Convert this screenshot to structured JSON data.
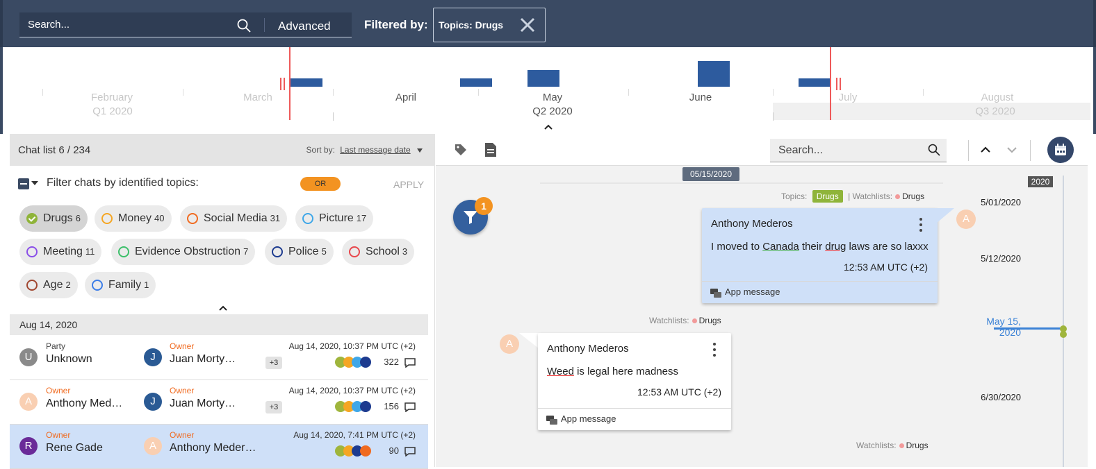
{
  "topbar": {
    "search_placeholder": "Search...",
    "advanced_label": "Advanced",
    "filtered_by_label": "Filtered by:",
    "filter_chip_label": "Topics:  Drugs"
  },
  "timeline": {
    "months": [
      "February",
      "March",
      "April",
      "May",
      "June",
      "July",
      "August"
    ],
    "quarters": [
      "Q1  2020",
      "Q2  2020",
      "Q3  2020"
    ]
  },
  "chat_list": {
    "title": "Chat list   6 / 234",
    "sort_label": "Sort by:",
    "sort_value": "Last message date",
    "filter_label": "Filter chats by identified topics:",
    "or_label": "OR",
    "apply_label": "APPLY",
    "topics": [
      {
        "name": "Drugs",
        "count": "6",
        "color": "#8fb43a",
        "selected": true
      },
      {
        "name": "Money",
        "count": "40",
        "color": "#f5a623"
      },
      {
        "name": "Social Media",
        "count": "31",
        "color": "#f06a1f"
      },
      {
        "name": "Picture",
        "count": "17",
        "color": "#3fa7e8"
      },
      {
        "name": "Meeting",
        "count": "11",
        "color": "#8a4fe8"
      },
      {
        "name": "Evidence Obstruction",
        "count": "7",
        "color": "#3cbf6a"
      },
      {
        "name": "Police",
        "count": "5",
        "color": "#1d3b8f"
      },
      {
        "name": "School",
        "count": "3",
        "color": "#e8474c"
      },
      {
        "name": "Age",
        "count": "2",
        "color": "#a0462f"
      },
      {
        "name": "Family",
        "count": "1",
        "color": "#3b7de8"
      }
    ],
    "date_group": "Aug 14, 2020",
    "rows": [
      {
        "p1_initial": "U",
        "p1_role": "Party",
        "p1_name": "Unknown",
        "p1_color": "#8a8a8a",
        "p2_initial": "J",
        "p2_role": "Owner",
        "p2_name": "Juan Morty…",
        "p2_color": "#2a5a94",
        "plus": "+3",
        "timestamp": "Aug 14, 2020, 10:37 PM UTC (+2)",
        "count": "322",
        "colors": [
          "#9fb53c",
          "#f5a623",
          "#3fa7e8",
          "#1d3b8f"
        ]
      },
      {
        "p1_initial": "A",
        "p1_role": "Owner",
        "p1_name": "Anthony Med…",
        "p1_color": "#f9cfb2",
        "p2_initial": "J",
        "p2_role": "Owner",
        "p2_name": "Juan Morty…",
        "p2_color": "#2a5a94",
        "plus": "+3",
        "timestamp": "Aug 14, 2020, 10:37 PM UTC (+2)",
        "count": "156",
        "colors": [
          "#9fb53c",
          "#f5a623",
          "#3fa7e8",
          "#1d3b8f"
        ]
      },
      {
        "p1_initial": "R",
        "p1_role": "Owner",
        "p1_name": "Rene Gade",
        "p1_color": "#6a2b98",
        "p2_initial": "A",
        "p2_role": "Owner",
        "p2_name": "Anthony Meder…",
        "p2_color": "#f9cfb2",
        "plus": "",
        "timestamp": "Aug 14, 2020, 7:41 PM UTC (+2)",
        "count": "90",
        "colors": [
          "#9fb53c",
          "#f5a623",
          "#1d3b8f",
          "#f06a1f"
        ]
      }
    ]
  },
  "conversation": {
    "search_placeholder": "Search...",
    "date_pill": "05/15/2020",
    "filter_badge": "1",
    "meta1_topics": "Topics:",
    "meta1_topic": "Drugs",
    "meta1_watch": "| Watchlists:",
    "meta1_watch_value": "Drugs",
    "meta2_watch": "Watchlists:",
    "meta2_watch_value": "Drugs",
    "meta3_watch": "Watchlists:",
    "meta3_watch_value": "Drugs",
    "messages": [
      {
        "sender": "Anthony Mederos",
        "text_pre": "I moved to ",
        "text_w1": "Canada",
        "text_mid": " their ",
        "text_w2": "drug",
        "text_post": " laws are so laxxx",
        "time": "12:53 AM UTC (+2)",
        "footer": "App message",
        "avatar": "A"
      },
      {
        "sender": "Anthony Mederos",
        "text_w1": "Weed",
        "text_post": " is legal here madness",
        "time": "12:53 AM UTC (+2)",
        "footer": "App message",
        "avatar": "A"
      }
    ],
    "year": "2020",
    "dates": [
      "5/01/2020",
      "5/12/2020",
      "May 15, 2020",
      "6/30/2020"
    ]
  }
}
